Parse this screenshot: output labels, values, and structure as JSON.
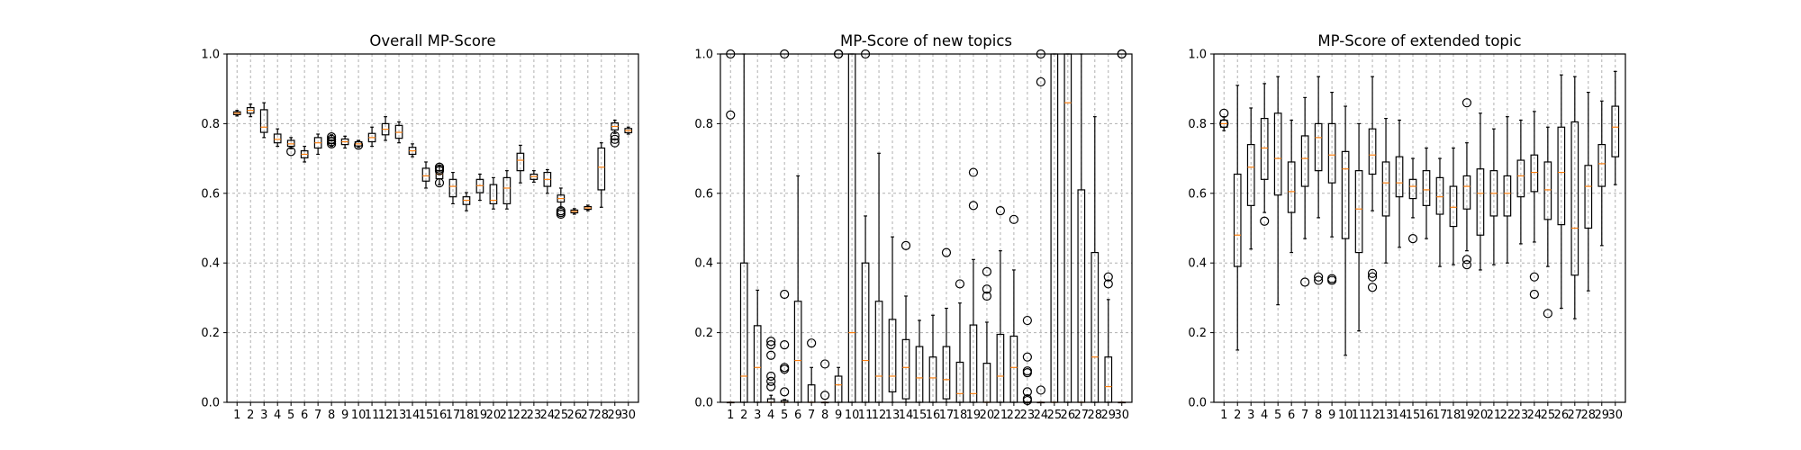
{
  "colors": {
    "median": "#ff7f0e",
    "box": "#000000",
    "grid": "#b0b0b0"
  },
  "chart_data": [
    {
      "type": "box",
      "title": "Overall MP-Score",
      "ylim": [
        0,
        1
      ],
      "yticks": [
        "0.0",
        "0.2",
        "0.4",
        "0.6",
        "0.8",
        "1.0"
      ],
      "grid": true,
      "categories": [
        "1",
        "2",
        "3",
        "4",
        "5",
        "6",
        "7",
        "8",
        "9",
        "10",
        "11",
        "12",
        "13",
        "14",
        "15",
        "16",
        "17",
        "18",
        "19",
        "20",
        "21",
        "22",
        "23",
        "24",
        "25",
        "26",
        "27",
        "28",
        "29",
        "30"
      ],
      "boxes": [
        {
          "q1": 0.826,
          "med": 0.83,
          "q3": 0.834,
          "lo": 0.822,
          "hi": 0.838,
          "fliers": []
        },
        {
          "q1": 0.83,
          "med": 0.838,
          "q3": 0.846,
          "lo": 0.82,
          "hi": 0.856,
          "fliers": []
        },
        {
          "q1": 0.775,
          "med": 0.79,
          "q3": 0.84,
          "lo": 0.76,
          "hi": 0.86,
          "fliers": []
        },
        {
          "q1": 0.745,
          "med": 0.755,
          "q3": 0.77,
          "lo": 0.735,
          "hi": 0.785,
          "fliers": []
        },
        {
          "q1": 0.735,
          "med": 0.742,
          "q3": 0.752,
          "lo": 0.728,
          "hi": 0.76,
          "fliers": [
            0.72
          ]
        },
        {
          "q1": 0.702,
          "med": 0.712,
          "q3": 0.722,
          "lo": 0.69,
          "hi": 0.735,
          "fliers": []
        },
        {
          "q1": 0.73,
          "med": 0.745,
          "q3": 0.76,
          "lo": 0.712,
          "hi": 0.77,
          "fliers": []
        },
        {
          "q1": 0.743,
          "med": 0.752,
          "q3": 0.76,
          "lo": 0.735,
          "hi": 0.768,
          "fliers": [
            0.742,
            0.748,
            0.755,
            0.762
          ]
        },
        {
          "q1": 0.74,
          "med": 0.748,
          "q3": 0.756,
          "lo": 0.73,
          "hi": 0.764,
          "fliers": []
        },
        {
          "q1": 0.736,
          "med": 0.742,
          "q3": 0.748,
          "lo": 0.732,
          "hi": 0.752,
          "fliers": [
            0.738
          ]
        },
        {
          "q1": 0.748,
          "med": 0.76,
          "q3": 0.772,
          "lo": 0.735,
          "hi": 0.79,
          "fliers": []
        },
        {
          "q1": 0.768,
          "med": 0.784,
          "q3": 0.8,
          "lo": 0.752,
          "hi": 0.82,
          "fliers": []
        },
        {
          "q1": 0.758,
          "med": 0.775,
          "q3": 0.795,
          "lo": 0.745,
          "hi": 0.805,
          "fliers": []
        },
        {
          "q1": 0.712,
          "med": 0.722,
          "q3": 0.732,
          "lo": 0.705,
          "hi": 0.742,
          "fliers": []
        },
        {
          "q1": 0.635,
          "med": 0.65,
          "q3": 0.672,
          "lo": 0.615,
          "hi": 0.69,
          "fliers": []
        },
        {
          "q1": 0.642,
          "med": 0.655,
          "q3": 0.665,
          "lo": 0.625,
          "hi": 0.68,
          "fliers": [
            0.63,
            0.665,
            0.67,
            0.675
          ]
        },
        {
          "q1": 0.59,
          "med": 0.62,
          "q3": 0.64,
          "lo": 0.57,
          "hi": 0.66,
          "fliers": []
        },
        {
          "q1": 0.568,
          "med": 0.58,
          "q3": 0.59,
          "lo": 0.55,
          "hi": 0.602,
          "fliers": []
        },
        {
          "q1": 0.602,
          "med": 0.622,
          "q3": 0.64,
          "lo": 0.58,
          "hi": 0.655,
          "fliers": []
        },
        {
          "q1": 0.57,
          "med": 0.58,
          "q3": 0.625,
          "lo": 0.555,
          "hi": 0.645,
          "fliers": []
        },
        {
          "q1": 0.57,
          "med": 0.615,
          "q3": 0.645,
          "lo": 0.555,
          "hi": 0.665,
          "fliers": []
        },
        {
          "q1": 0.665,
          "med": 0.695,
          "q3": 0.715,
          "lo": 0.63,
          "hi": 0.738,
          "fliers": []
        },
        {
          "q1": 0.64,
          "med": 0.648,
          "q3": 0.655,
          "lo": 0.632,
          "hi": 0.665,
          "fliers": []
        },
        {
          "q1": 0.62,
          "med": 0.64,
          "q3": 0.66,
          "lo": 0.6,
          "hi": 0.668,
          "fliers": []
        },
        {
          "q1": 0.575,
          "med": 0.585,
          "q3": 0.595,
          "lo": 0.56,
          "hi": 0.615,
          "fliers": [
            0.54,
            0.545,
            0.55
          ]
        },
        {
          "q1": 0.544,
          "med": 0.548,
          "q3": 0.552,
          "lo": 0.54,
          "hi": 0.556,
          "fliers": []
        },
        {
          "q1": 0.554,
          "med": 0.558,
          "q3": 0.562,
          "lo": 0.55,
          "hi": 0.566,
          "fliers": []
        },
        {
          "q1": 0.61,
          "med": 0.675,
          "q3": 0.73,
          "lo": 0.56,
          "hi": 0.745,
          "fliers": []
        },
        {
          "q1": 0.782,
          "med": 0.792,
          "q3": 0.802,
          "lo": 0.772,
          "hi": 0.81,
          "fliers": [
            0.745,
            0.755,
            0.765
          ]
        },
        {
          "q1": 0.774,
          "med": 0.78,
          "q3": 0.786,
          "lo": 0.77,
          "hi": 0.79,
          "fliers": []
        }
      ]
    },
    {
      "type": "box",
      "title": "MP-Score of new topics",
      "ylim": [
        0,
        1
      ],
      "yticks": [
        "0.0",
        "0.2",
        "0.4",
        "0.6",
        "0.8",
        "1.0"
      ],
      "grid": true,
      "categories": [
        "1",
        "2",
        "3",
        "4",
        "5",
        "6",
        "7",
        "8",
        "9",
        "10",
        "11",
        "12",
        "13",
        "14",
        "15",
        "16",
        "17",
        "18",
        "19",
        "20",
        "21",
        "22",
        "23",
        "24",
        "25",
        "26",
        "27",
        "28",
        "29",
        "30"
      ],
      "boxes": [
        {
          "q1": 0.0,
          "med": 0.0,
          "q3": 0.0,
          "lo": 0.0,
          "hi": 0.0,
          "fliers": [
            1.0,
            0.825
          ]
        },
        {
          "q1": 0.0,
          "med": 0.075,
          "q3": 0.4,
          "lo": 0.0,
          "hi": 1.0,
          "fliers": []
        },
        {
          "q1": 0.0,
          "med": 0.1,
          "q3": 0.22,
          "lo": 0.0,
          "hi": 0.322,
          "fliers": []
        },
        {
          "q1": 0.0,
          "med": 0.0,
          "q3": 0.01,
          "lo": 0.0,
          "hi": 0.02,
          "fliers": [
            0.175,
            0.165,
            0.135,
            0.075,
            0.06,
            0.045
          ]
        },
        {
          "q1": 0.0,
          "med": 0.0,
          "q3": 0.005,
          "lo": 0.0,
          "hi": 0.008,
          "fliers": [
            1.0,
            0.31,
            0.165,
            0.1,
            0.095,
            0.03
          ]
        },
        {
          "q1": 0.0,
          "med": 0.12,
          "q3": 0.29,
          "lo": 0.0,
          "hi": 0.65,
          "fliers": []
        },
        {
          "q1": 0.0,
          "med": 0.0,
          "q3": 0.05,
          "lo": 0.0,
          "hi": 0.1,
          "fliers": [
            0.17
          ]
        },
        {
          "q1": 0.0,
          "med": 0.0,
          "q3": 0.0,
          "lo": 0.0,
          "hi": 0.0,
          "fliers": [
            0.11,
            0.02
          ]
        },
        {
          "q1": 0.0,
          "med": 0.05,
          "q3": 0.075,
          "lo": 0.0,
          "hi": 0.1,
          "fliers": [
            1.0,
            1.0
          ]
        },
        {
          "q1": 0.0,
          "med": 0.2,
          "q3": 1.0,
          "lo": 0.0,
          "hi": 1.0,
          "fliers": []
        },
        {
          "q1": 0.0,
          "med": 0.12,
          "q3": 0.4,
          "lo": 0.0,
          "hi": 0.535,
          "fliers": [
            1.0
          ]
        },
        {
          "q1": 0.0,
          "med": 0.075,
          "q3": 0.29,
          "lo": 0.0,
          "hi": 0.715,
          "fliers": []
        },
        {
          "q1": 0.03,
          "med": 0.075,
          "q3": 0.238,
          "lo": 0.0,
          "hi": 0.475,
          "fliers": []
        },
        {
          "q1": 0.01,
          "med": 0.1,
          "q3": 0.18,
          "lo": 0.0,
          "hi": 0.305,
          "fliers": [
            0.45
          ]
        },
        {
          "q1": 0.0,
          "med": 0.07,
          "q3": 0.16,
          "lo": 0.0,
          "hi": 0.235,
          "fliers": []
        },
        {
          "q1": 0.0,
          "med": 0.07,
          "q3": 0.13,
          "lo": 0.0,
          "hi": 0.25,
          "fliers": []
        },
        {
          "q1": 0.01,
          "med": 0.065,
          "q3": 0.16,
          "lo": 0.0,
          "hi": 0.27,
          "fliers": [
            0.43
          ]
        },
        {
          "q1": 0.0,
          "med": 0.025,
          "q3": 0.115,
          "lo": 0.0,
          "hi": 0.285,
          "fliers": [
            0.34
          ]
        },
        {
          "q1": 0.0,
          "med": 0.025,
          "q3": 0.222,
          "lo": 0.0,
          "hi": 0.41,
          "fliers": [
            0.66,
            0.565
          ]
        },
        {
          "q1": 0.0,
          "med": 0.0,
          "q3": 0.112,
          "lo": 0.0,
          "hi": 0.23,
          "fliers": [
            0.375,
            0.325,
            0.305
          ]
        },
        {
          "q1": 0.0,
          "med": 0.075,
          "q3": 0.195,
          "lo": 0.0,
          "hi": 0.435,
          "fliers": [
            0.55
          ]
        },
        {
          "q1": 0.0,
          "med": 0.1,
          "q3": 0.19,
          "lo": 0.0,
          "hi": 0.38,
          "fliers": [
            0.525
          ]
        },
        {
          "q1": 0.0,
          "med": 0.0,
          "q3": 0.0,
          "lo": 0.0,
          "hi": 0.0,
          "fliers": [
            0.235,
            0.13,
            0.09,
            0.085,
            0.03,
            0.01,
            0.005
          ]
        },
        {
          "q1": 0.0,
          "med": 0.0,
          "q3": 0.0,
          "lo": 0.0,
          "hi": 0.0,
          "fliers": [
            1.0,
            0.92,
            0.035
          ]
        },
        {
          "q1": 0.0,
          "med": 0.0,
          "q3": 1.0,
          "lo": 0.0,
          "hi": 1.0,
          "fliers": []
        },
        {
          "q1": 0.0,
          "med": 0.86,
          "q3": 1.0,
          "lo": 0.0,
          "hi": 1.0,
          "fliers": []
        },
        {
          "q1": 0.0,
          "med": 0.0,
          "q3": 0.61,
          "lo": 0.0,
          "hi": 1.0,
          "fliers": []
        },
        {
          "q1": 0.0,
          "med": 0.13,
          "q3": 0.43,
          "lo": 0.0,
          "hi": 0.82,
          "fliers": []
        },
        {
          "q1": 0.0,
          "med": 0.045,
          "q3": 0.13,
          "lo": 0.0,
          "hi": 0.295,
          "fliers": [
            0.36,
            0.34
          ]
        },
        {
          "q1": 0.0,
          "med": 0.0,
          "q3": 0.0,
          "lo": 0.0,
          "hi": 0.0,
          "fliers": [
            1.0,
            1.0
          ]
        }
      ]
    },
    {
      "type": "box",
      "title": "MP-Score of extended topic",
      "ylim": [
        0,
        1
      ],
      "yticks": [
        "0.0",
        "0.2",
        "0.4",
        "0.6",
        "0.8",
        "1.0"
      ],
      "grid": true,
      "categories": [
        "1",
        "2",
        "3",
        "4",
        "5",
        "6",
        "7",
        "8",
        "9",
        "10",
        "11",
        "12",
        "13",
        "14",
        "15",
        "16",
        "17",
        "18",
        "19",
        "20",
        "21",
        "22",
        "23",
        "24",
        "25",
        "26",
        "27",
        "28",
        "29",
        "30"
      ],
      "boxes": [
        {
          "q1": 0.79,
          "med": 0.8,
          "q3": 0.81,
          "lo": 0.78,
          "hi": 0.82,
          "fliers": [
            0.83,
            0.8
          ]
        },
        {
          "q1": 0.39,
          "med": 0.48,
          "q3": 0.655,
          "lo": 0.15,
          "hi": 0.91,
          "fliers": []
        },
        {
          "q1": 0.565,
          "med": 0.675,
          "q3": 0.74,
          "lo": 0.44,
          "hi": 0.845,
          "fliers": []
        },
        {
          "q1": 0.64,
          "med": 0.73,
          "q3": 0.815,
          "lo": 0.545,
          "hi": 0.915,
          "fliers": [
            0.52
          ]
        },
        {
          "q1": 0.595,
          "med": 0.7,
          "q3": 0.83,
          "lo": 0.28,
          "hi": 0.935,
          "fliers": []
        },
        {
          "q1": 0.545,
          "med": 0.605,
          "q3": 0.69,
          "lo": 0.43,
          "hi": 0.81,
          "fliers": []
        },
        {
          "q1": 0.62,
          "med": 0.7,
          "q3": 0.765,
          "lo": 0.47,
          "hi": 0.875,
          "fliers": [
            0.345
          ]
        },
        {
          "q1": 0.665,
          "med": 0.76,
          "q3": 0.8,
          "lo": 0.53,
          "hi": 0.935,
          "fliers": [
            0.36,
            0.35
          ]
        },
        {
          "q1": 0.63,
          "med": 0.71,
          "q3": 0.8,
          "lo": 0.475,
          "hi": 0.89,
          "fliers": [
            0.355,
            0.35
          ]
        },
        {
          "q1": 0.47,
          "med": 0.67,
          "q3": 0.72,
          "lo": 0.135,
          "hi": 0.85,
          "fliers": []
        },
        {
          "q1": 0.43,
          "med": 0.555,
          "q3": 0.665,
          "lo": 0.205,
          "hi": 0.8,
          "fliers": []
        },
        {
          "q1": 0.655,
          "med": 0.71,
          "q3": 0.785,
          "lo": 0.55,
          "hi": 0.935,
          "fliers": [
            0.37,
            0.36,
            0.33
          ]
        },
        {
          "q1": 0.535,
          "med": 0.63,
          "q3": 0.69,
          "lo": 0.4,
          "hi": 0.815,
          "fliers": []
        },
        {
          "q1": 0.59,
          "med": 0.63,
          "q3": 0.705,
          "lo": 0.445,
          "hi": 0.81,
          "fliers": []
        },
        {
          "q1": 0.585,
          "med": 0.62,
          "q3": 0.64,
          "lo": 0.53,
          "hi": 0.7,
          "fliers": [
            0.47
          ]
        },
        {
          "q1": 0.565,
          "med": 0.61,
          "q3": 0.665,
          "lo": 0.47,
          "hi": 0.73,
          "fliers": []
        },
        {
          "q1": 0.54,
          "med": 0.59,
          "q3": 0.645,
          "lo": 0.39,
          "hi": 0.7,
          "fliers": []
        },
        {
          "q1": 0.505,
          "med": 0.56,
          "q3": 0.62,
          "lo": 0.395,
          "hi": 0.73,
          "fliers": []
        },
        {
          "q1": 0.555,
          "med": 0.62,
          "q3": 0.65,
          "lo": 0.435,
          "hi": 0.745,
          "fliers": [
            0.86,
            0.41,
            0.395
          ]
        },
        {
          "q1": 0.48,
          "med": 0.6,
          "q3": 0.67,
          "lo": 0.38,
          "hi": 0.83,
          "fliers": []
        },
        {
          "q1": 0.535,
          "med": 0.6,
          "q3": 0.665,
          "lo": 0.395,
          "hi": 0.785,
          "fliers": []
        },
        {
          "q1": 0.535,
          "med": 0.6,
          "q3": 0.65,
          "lo": 0.4,
          "hi": 0.82,
          "fliers": []
        },
        {
          "q1": 0.59,
          "med": 0.65,
          "q3": 0.695,
          "lo": 0.455,
          "hi": 0.81,
          "fliers": []
        },
        {
          "q1": 0.605,
          "med": 0.66,
          "q3": 0.71,
          "lo": 0.46,
          "hi": 0.835,
          "fliers": [
            0.36,
            0.31
          ]
        },
        {
          "q1": 0.525,
          "med": 0.61,
          "q3": 0.69,
          "lo": 0.39,
          "hi": 0.79,
          "fliers": [
            0.255
          ]
        },
        {
          "q1": 0.51,
          "med": 0.66,
          "q3": 0.79,
          "lo": 0.27,
          "hi": 0.94,
          "fliers": []
        },
        {
          "q1": 0.365,
          "med": 0.5,
          "q3": 0.805,
          "lo": 0.24,
          "hi": 0.935,
          "fliers": []
        },
        {
          "q1": 0.5,
          "med": 0.62,
          "q3": 0.68,
          "lo": 0.32,
          "hi": 0.89,
          "fliers": []
        },
        {
          "q1": 0.62,
          "med": 0.685,
          "q3": 0.74,
          "lo": 0.45,
          "hi": 0.865,
          "fliers": []
        },
        {
          "q1": 0.705,
          "med": 0.79,
          "q3": 0.85,
          "lo": 0.625,
          "hi": 0.95,
          "fliers": []
        }
      ]
    }
  ]
}
